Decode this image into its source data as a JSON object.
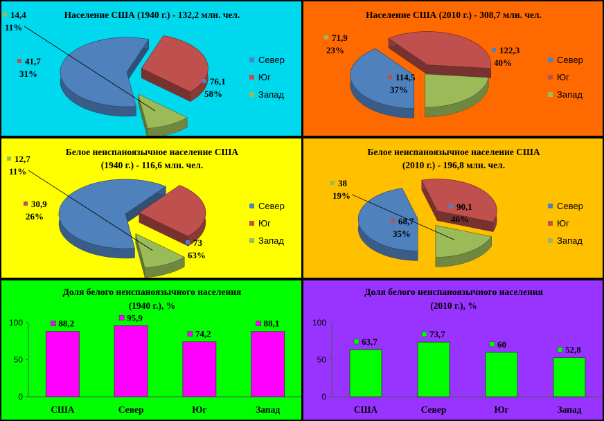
{
  "chart_data": [
    {
      "type": "pie",
      "title": "Население США (1940 г.) - 132,2 млн. чел.",
      "background": "#00D8EE",
      "labels": [
        "Север",
        "Юг",
        "Запад"
      ],
      "values": [
        76.1,
        41.7,
        14.4
      ],
      "value_labels": [
        "76,1",
        "41,7",
        "14,4"
      ],
      "percent_labels": [
        "58%",
        "31%",
        "11%"
      ],
      "legend": [
        "Север",
        "Юг",
        "Запад"
      ],
      "legend_placement": "right"
    },
    {
      "type": "pie",
      "title": "Население США (2010 г.) - 308,7 млн. чел.",
      "background": "#FF6A00",
      "labels": [
        "Север",
        "Юг",
        "Запад"
      ],
      "values": [
        122.3,
        114.5,
        71.9
      ],
      "value_labels": [
        "122,3",
        "114,5",
        "71,9"
      ],
      "percent_labels": [
        "40%",
        "37%",
        "23%"
      ],
      "legend": [
        "Север",
        "Юг",
        "Запад"
      ],
      "legend_placement": "right"
    },
    {
      "type": "pie",
      "title_lines": [
        "Белое неиспаноязычное население США",
        "(1940 г.) - 116,6 млн. чел."
      ],
      "background": "#FFFF00",
      "labels": [
        "Север",
        "Юг",
        "Запад"
      ],
      "values": [
        73,
        30.9,
        12.7
      ],
      "value_labels": [
        "73",
        "30,9",
        "12,7"
      ],
      "percent_labels": [
        "63%",
        "26%",
        "11%"
      ],
      "legend": [
        "Север",
        "Юг",
        "Запад"
      ],
      "legend_placement": "right"
    },
    {
      "type": "pie",
      "title_lines": [
        "Белое неиспаноязычное население США",
        "(2010 г.) - 196,8 млн. чел."
      ],
      "background": "#FFC000",
      "labels": [
        "Север",
        "Юг",
        "Запад"
      ],
      "values": [
        90.1,
        68.7,
        38
      ],
      "value_labels": [
        "90,1",
        "68,7",
        "38"
      ],
      "percent_labels": [
        "46%",
        "35%",
        "19%"
      ],
      "legend": [
        "Север",
        "Юг",
        "Запад"
      ],
      "legend_placement": "right"
    },
    {
      "type": "bar",
      "title_lines": [
        "Доля белого неиспаноязычного населения",
        "(1940 г.), %"
      ],
      "background": "#00FF00",
      "bar_color": "#FF00FF",
      "categories": [
        "США",
        "Север",
        "Юг",
        "Запад"
      ],
      "values": [
        88.2,
        95.9,
        74.2,
        88.1
      ],
      "value_labels": [
        "88,2",
        "95,9",
        "74,2",
        "88,1"
      ],
      "yticks": [
        "0",
        "50",
        "100"
      ],
      "ylim": [
        0,
        100
      ]
    },
    {
      "type": "bar",
      "title_lines": [
        "Доля белого неиспаноязычного населения",
        "(2010 г.), %"
      ],
      "background": "#9933FF",
      "bar_color": "#00FF00",
      "categories": [
        "США",
        "Север",
        "Юг",
        "Запад"
      ],
      "values": [
        63.7,
        73.7,
        60,
        52.8
      ],
      "value_labels": [
        "63,7",
        "73,7",
        "60",
        "52,8"
      ],
      "yticks": [
        "0",
        "50",
        "100"
      ],
      "ylim": [
        0,
        100
      ]
    }
  ],
  "colors": {
    "north": "#4F81BD",
    "south": "#C0504D",
    "west": "#9BBB59"
  }
}
